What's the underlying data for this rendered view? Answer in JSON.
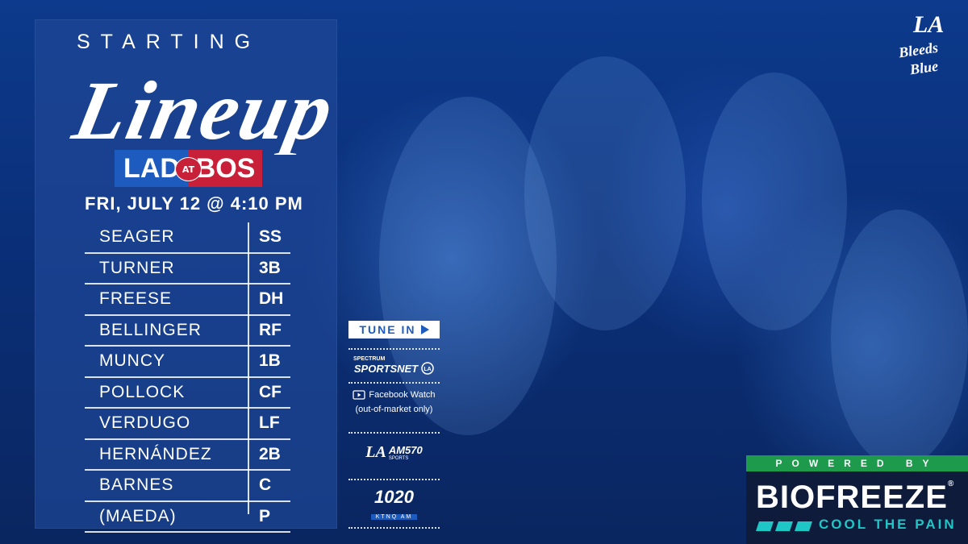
{
  "header": {
    "starting": "STARTING",
    "lineup": "Lineup"
  },
  "matchup": {
    "away": "LAD",
    "at": "AT",
    "home": "BOS"
  },
  "game_time": "FRI, JULY 12 @ 4:10 PM",
  "lineup": [
    {
      "name": "SEAGER",
      "pos": "SS"
    },
    {
      "name": "TURNER",
      "pos": "3B"
    },
    {
      "name": "FREESE",
      "pos": "DH"
    },
    {
      "name": "BELLINGER",
      "pos": "RF"
    },
    {
      "name": "MUNCY",
      "pos": "1B"
    },
    {
      "name": "POLLOCK",
      "pos": "CF"
    },
    {
      "name": "VERDUGO",
      "pos": "LF"
    },
    {
      "name": "HERNÁNDEZ",
      "pos": "2B"
    },
    {
      "name": "BARNES",
      "pos": "C"
    },
    {
      "name": "(MAEDA)",
      "pos": "P"
    }
  ],
  "tune_in": {
    "label": "TUNE IN",
    "spectrum_top": "SPECTRUM",
    "spectrum_main": "SPORTSNET",
    "facebook": "Facebook Watch",
    "facebook_note": "(out-of-market only)",
    "am570": "AM570",
    "am570_sub": "SPORTS",
    "radio_1020": "1020",
    "radio_1020_sub": "KTNQ AM"
  },
  "brand": {
    "la": "LA",
    "bleeds": "Bleeds",
    "blue": "Blue"
  },
  "sponsor": {
    "powered_by": "POWERED BY",
    "name": "BIOFREEZE",
    "registered": "®",
    "tagline": "COOL THE PAIN"
  },
  "colors": {
    "dodger_blue": "#1e5bbf",
    "red_sox_red": "#c9203a",
    "sponsor_green": "#1e9a4c",
    "sponsor_teal": "#1fc6c6"
  }
}
